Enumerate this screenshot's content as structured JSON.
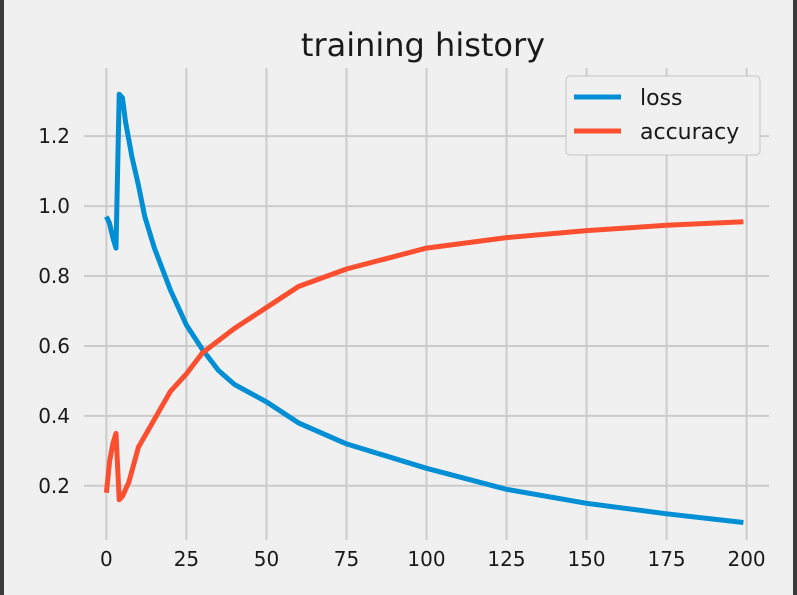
{
  "chart_data": {
    "type": "line",
    "title": "training history",
    "xlabel": "",
    "ylabel": "",
    "xlim": [
      -7,
      207
    ],
    "ylim": [
      0.045,
      1.395
    ],
    "xticks": [
      0,
      25,
      50,
      75,
      100,
      125,
      150,
      175,
      200
    ],
    "yticks": [
      0.2,
      0.4,
      0.6,
      0.8,
      1.0,
      1.2
    ],
    "ytick_labels": [
      "0.2",
      "0.4",
      "0.6",
      "0.8",
      "1.0",
      "1.2"
    ],
    "grid": true,
    "legend_position": "top-right",
    "series": [
      {
        "name": "loss",
        "color": "#008fd5",
        "points": [
          [
            0,
            0.97
          ],
          [
            1,
            0.95
          ],
          [
            2,
            0.91
          ],
          [
            3,
            0.88
          ],
          [
            4,
            1.32
          ],
          [
            5,
            1.31
          ],
          [
            6,
            1.24
          ],
          [
            8,
            1.14
          ],
          [
            10,
            1.06
          ],
          [
            12,
            0.97
          ],
          [
            15,
            0.88
          ],
          [
            20,
            0.76
          ],
          [
            25,
            0.66
          ],
          [
            30,
            0.59
          ],
          [
            35,
            0.53
          ],
          [
            40,
            0.49
          ],
          [
            50,
            0.44
          ],
          [
            60,
            0.38
          ],
          [
            75,
            0.32
          ],
          [
            100,
            0.25
          ],
          [
            125,
            0.19
          ],
          [
            150,
            0.15
          ],
          [
            175,
            0.12
          ],
          [
            199,
            0.095
          ]
        ]
      },
      {
        "name": "accuracy",
        "color": "#fc4f30",
        "points": [
          [
            0,
            0.18
          ],
          [
            1,
            0.27
          ],
          [
            2,
            0.32
          ],
          [
            3,
            0.35
          ],
          [
            4,
            0.16
          ],
          [
            5,
            0.17
          ],
          [
            7,
            0.21
          ],
          [
            10,
            0.31
          ],
          [
            15,
            0.39
          ],
          [
            20,
            0.47
          ],
          [
            25,
            0.52
          ],
          [
            30,
            0.58
          ],
          [
            40,
            0.65
          ],
          [
            50,
            0.71
          ],
          [
            60,
            0.77
          ],
          [
            75,
            0.82
          ],
          [
            100,
            0.88
          ],
          [
            125,
            0.91
          ],
          [
            150,
            0.93
          ],
          [
            175,
            0.945
          ],
          [
            199,
            0.955
          ]
        ]
      }
    ]
  }
}
